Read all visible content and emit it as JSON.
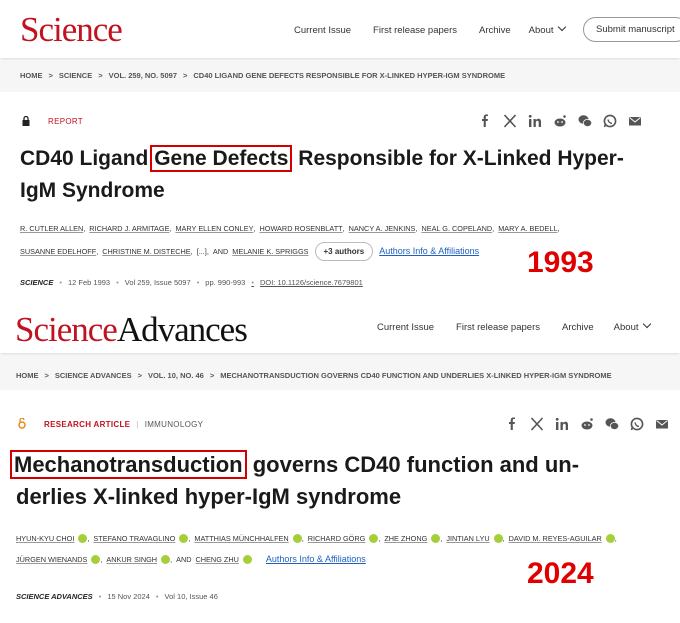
{
  "science": {
    "logo": "Science",
    "nav": [
      "Current Issue",
      "First release papers",
      "Archive",
      "About"
    ],
    "submit": "Submit manuscript",
    "breadcrumb": [
      "HOME",
      "SCIENCE",
      "VOL. 259, NO. 5097",
      "CD40 LIGAND GENE DEFECTS RESPONSIBLE FOR X-LINKED HYPER-IGM SYNDROME"
    ],
    "article_type": "REPORT",
    "title": {
      "before": "CD40 Ligand",
      "highlight": "Gene Defects",
      "after": "Responsible for X-Linked Hyper-IgM Syndrome"
    },
    "authors": [
      "R. CUTLER ALLEN",
      "RICHARD J. ARMITAGE",
      "MARY ELLEN CONLEY",
      "HOWARD ROSENBLATT",
      "NANCY A. JENKINS",
      "NEAL G. COPELAND",
      "MARY A. BEDELL",
      "SUSANNE EDELHOFF",
      "CHRISTINE M. DISTECHE"
    ],
    "ellipsis": "[...]",
    "conjunction": "AND",
    "last_author": "MELANIE K. SPRIGGS",
    "more_authors": "+3 authors",
    "affiliations": "Authors Info & Affiliations",
    "meta": {
      "journal": "SCIENCE",
      "date": "12 Feb 1993",
      "volume": "Vol 259, Issue 5097",
      "pages": "pp. 990-993",
      "doi": "DOI: 10.1126/science.7679801"
    },
    "year_annotation": "1993"
  },
  "science_advances": {
    "logo": {
      "first": "Science",
      "second": "Advances"
    },
    "nav": [
      "Current Issue",
      "First release papers",
      "Archive",
      "About"
    ],
    "breadcrumb": [
      "HOME",
      "SCIENCE ADVANCES",
      "VOL. 10, NO. 46",
      "MECHANOTRANSDUCTION GOVERNS CD40 FUNCTION AND UNDERLIES X-LINKED HYPER-IGM SYNDROME"
    ],
    "article_type": "RESEARCH ARTICLE",
    "subject": "IMMUNOLOGY",
    "title": {
      "highlight": "Mechanotransduction",
      "line1_rest": "governs CD40 function and un-",
      "line2": "derlies X-linked hyper-IgM syndrome"
    },
    "authors": [
      "HYUN-KYU CHOI",
      "STEFANO TRAVAGLINO",
      "MATTHIAS MÜNCHHALFEN",
      "RICHARD GÖRG",
      "ZHE ZHONG",
      "JINTIAN LYU",
      "DAVID M. REYES-AGUILAR",
      "JÜRGEN WIENANDS",
      "ANKUR SINGH"
    ],
    "conjunction": "AND",
    "last_author": "CHENG ZHU",
    "affiliations": "Authors Info & Affiliations",
    "meta": {
      "journal": "SCIENCE ADVANCES",
      "date": "15 Nov 2024",
      "volume": "Vol 10, Issue 46"
    },
    "year_annotation": "2024"
  }
}
